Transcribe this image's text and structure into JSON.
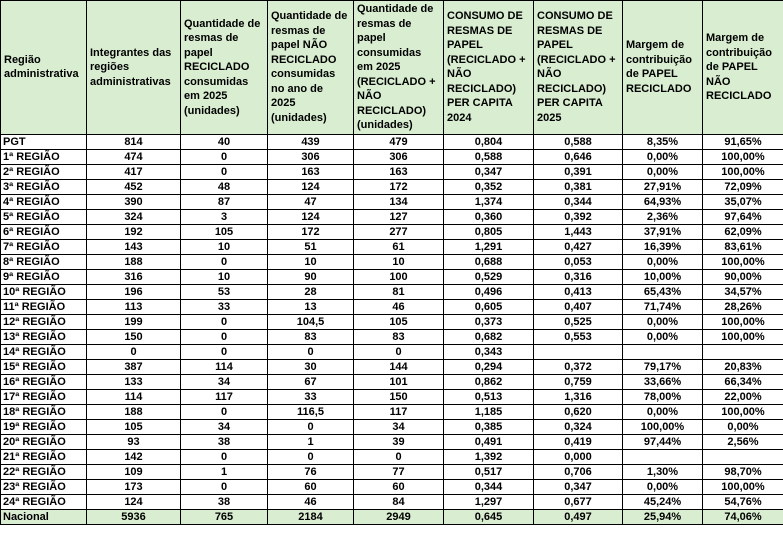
{
  "colors": {
    "header_bg": "#D9EDD1",
    "border": "#000000",
    "body_bg": "#FFFFFF"
  },
  "table": {
    "columns": [
      "Região administrativa",
      "Integrantes das regiões administrativas",
      "Quantidade de resmas de papel RECICLADO consumidas em 2025 (unidades)",
      "Quantidade de resmas de papel NÃO RECICLADO consumidas no ano de 2025 (unidades)",
      "Quantidade de resmas de papel consumidas em 2025 (RECICLADO + NÃO RECICLADO) (unidades)",
      "CONSUMO DE RESMAS DE PAPEL (RECICLADO + NÃO RECICLADO) PER CAPITA 2024",
      "CONSUMO DE RESMAS DE PAPEL (RECICLADO + NÃO RECICLADO) PER CAPITA 2025",
      "Margem de contribuição de PAPEL RECICLADO",
      "Margem de contribuição de PAPEL NÃO RECICLADO"
    ],
    "rows": [
      [
        "PGT",
        "814",
        "40",
        "439",
        "479",
        "0,804",
        "0,588",
        "8,35%",
        "91,65%"
      ],
      [
        "1ª REGIÃO",
        "474",
        "0",
        "306",
        "306",
        "0,588",
        "0,646",
        "0,00%",
        "100,00%"
      ],
      [
        "2ª REGIÃO",
        "417",
        "0",
        "163",
        "163",
        "0,347",
        "0,391",
        "0,00%",
        "100,00%"
      ],
      [
        "3ª REGIÃO",
        "452",
        "48",
        "124",
        "172",
        "0,352",
        "0,381",
        "27,91%",
        "72,09%"
      ],
      [
        "4ª REGIÃO",
        "390",
        "87",
        "47",
        "134",
        "1,374",
        "0,344",
        "64,93%",
        "35,07%"
      ],
      [
        "5ª REGIÃO",
        "324",
        "3",
        "124",
        "127",
        "0,360",
        "0,392",
        "2,36%",
        "97,64%"
      ],
      [
        "6ª REGIÃO",
        "192",
        "105",
        "172",
        "277",
        "0,805",
        "1,443",
        "37,91%",
        "62,09%"
      ],
      [
        "7ª REGIÃO",
        "143",
        "10",
        "51",
        "61",
        "1,291",
        "0,427",
        "16,39%",
        "83,61%"
      ],
      [
        "8ª REGIÃO",
        "188",
        "0",
        "10",
        "10",
        "0,688",
        "0,053",
        "0,00%",
        "100,00%"
      ],
      [
        "9ª REGIÃO",
        "316",
        "10",
        "90",
        "100",
        "0,529",
        "0,316",
        "10,00%",
        "90,00%"
      ],
      [
        "10ª REGIÃO",
        "196",
        "53",
        "28",
        "81",
        "0,496",
        "0,413",
        "65,43%",
        "34,57%"
      ],
      [
        "11ª REGIÃO",
        "113",
        "33",
        "13",
        "46",
        "0,605",
        "0,407",
        "71,74%",
        "28,26%"
      ],
      [
        "12ª REGIÃO",
        "199",
        "0",
        "104,5",
        "105",
        "0,373",
        "0,525",
        "0,00%",
        "100,00%"
      ],
      [
        "13ª REGIÃO",
        "150",
        "0",
        "83",
        "83",
        "0,682",
        "0,553",
        "0,00%",
        "100,00%"
      ],
      [
        "14ª REGIÃO",
        "0",
        "0",
        "0",
        "0",
        "0,343",
        "",
        "",
        ""
      ],
      [
        "15ª REGIÃO",
        "387",
        "114",
        "30",
        "144",
        "0,294",
        "0,372",
        "79,17%",
        "20,83%"
      ],
      [
        "16ª REGIÃO",
        "133",
        "34",
        "67",
        "101",
        "0,862",
        "0,759",
        "33,66%",
        "66,34%"
      ],
      [
        "17ª REGIÃO",
        "114",
        "117",
        "33",
        "150",
        "0,513",
        "1,316",
        "78,00%",
        "22,00%"
      ],
      [
        "18ª REGIÃO",
        "188",
        "0",
        "116,5",
        "117",
        "1,185",
        "0,620",
        "0,00%",
        "100,00%"
      ],
      [
        "19ª REGIÃO",
        "105",
        "34",
        "0",
        "34",
        "0,385",
        "0,324",
        "100,00%",
        "0,00%"
      ],
      [
        "20ª REGIÃO",
        "93",
        "38",
        "1",
        "39",
        "0,491",
        "0,419",
        "97,44%",
        "2,56%"
      ],
      [
        "21ª REGIÃO",
        "142",
        "0",
        "0",
        "0",
        "1,392",
        "0,000",
        "",
        ""
      ],
      [
        "22ª REGIÃO",
        "109",
        "1",
        "76",
        "77",
        "0,517",
        "0,706",
        "1,30%",
        "98,70%"
      ],
      [
        "23ª REGIÃO",
        "173",
        "0",
        "60",
        "60",
        "0,344",
        "0,347",
        "0,00%",
        "100,00%"
      ],
      [
        "24ª REGIÃO",
        "124",
        "38",
        "46",
        "84",
        "1,297",
        "0,677",
        "45,24%",
        "54,76%"
      ]
    ],
    "total_row": [
      "Nacional",
      "5936",
      "765",
      "2184",
      "2949",
      "0,645",
      "0,497",
      "25,94%",
      "74,06%"
    ]
  }
}
